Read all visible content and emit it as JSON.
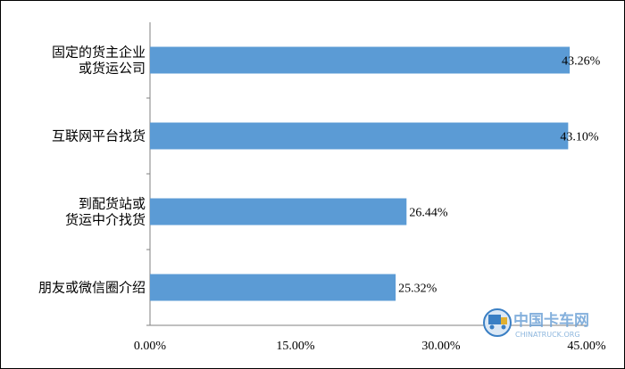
{
  "chart_data": {
    "type": "bar",
    "orientation": "horizontal",
    "categories": [
      [
        "固定的货主企业",
        "或货运公司"
      ],
      [
        "互联网平台找货"
      ],
      [
        "到配货站或",
        "货运中介找货"
      ],
      [
        "朋友或微信圈介绍"
      ]
    ],
    "values": [
      43.26,
      43.1,
      26.44,
      25.32
    ],
    "value_labels": [
      "43.26%",
      "43.10%",
      "26.44%",
      "25.32%"
    ],
    "xlim": [
      0,
      45
    ],
    "xticks": [
      0,
      15,
      30,
      45
    ],
    "xtick_labels": [
      "0.00%",
      "15.00%",
      "30.00%",
      "45.00%"
    ],
    "bar_color": "#5b9bd5",
    "grid": false,
    "legend": "none"
  },
  "watermark": {
    "title": "中国卡车网",
    "subtitle": "CHINATRUCK.ORG",
    "colors": {
      "primary": "#3a7fc4",
      "accent": "#e0b030"
    }
  }
}
